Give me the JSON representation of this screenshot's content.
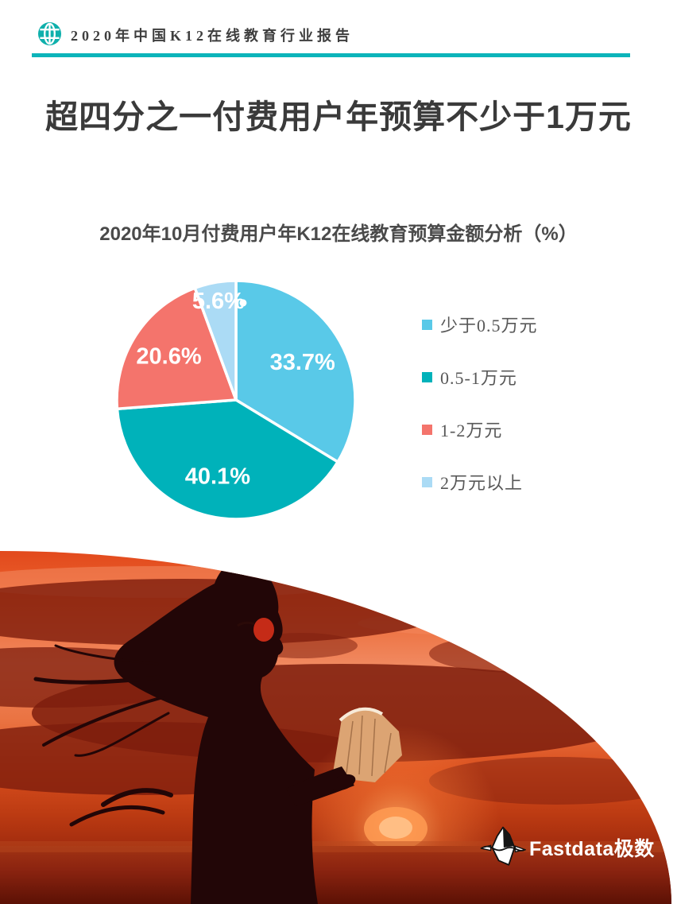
{
  "header": {
    "title": "2020年中国K12在线教育行业报告",
    "accent_color": "#0cb4ba",
    "icon": "globe-icon"
  },
  "main_title": "超四分之一付费用户年预算不少于1万元",
  "chart_data": {
    "type": "pie",
    "title": "2020年10月付费用户年K12在线教育预算金额分析（%）",
    "unit": "%",
    "direction": "clockwise",
    "start_angle_deg": 0,
    "legend_position": "right",
    "slices": [
      {
        "label": "少于0.5万元",
        "value": 33.7,
        "display": "33.7%",
        "color": "#59c9e8"
      },
      {
        "label": "0.5-1万元",
        "value": 40.1,
        "display": "40.1%",
        "color": "#00b2ba"
      },
      {
        "label": "1-2万元",
        "value": 20.6,
        "display": "20.6%",
        "color": "#f4746c"
      },
      {
        "label": "2万元以上",
        "value": 5.6,
        "display": "5.6%",
        "color": "#abdbf5",
        "dot": true
      }
    ],
    "label_radius_frac": [
      0.64,
      0.66,
      0.67,
      0.84
    ],
    "label_color": "#ffffff"
  },
  "photo": {
    "description": "Silhouette of a long-haired woman with round red sunglasses reading an open book against a red-orange sunset sky with dark clouds and the sun low over the sea"
  },
  "footer_logo": {
    "brand": "Fastdata极数",
    "icon": "iceberg-icon",
    "text_color": "#ffffff"
  }
}
